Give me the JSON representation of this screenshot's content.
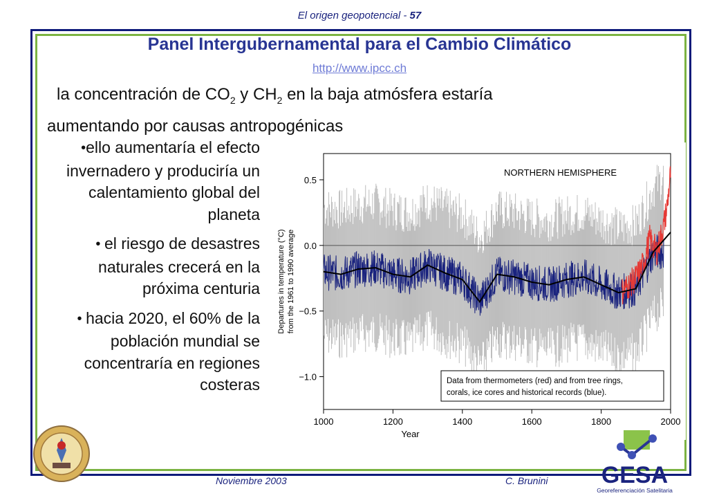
{
  "header": {
    "text": "El origen geopotencial - ",
    "page": "57"
  },
  "title": "Panel Intergubernamental para el Cambio Climático",
  "url": "http://www.ipcc.ch",
  "lead": {
    "part1": "la concentración de CO",
    "sub1": "2",
    "part2": " y CH",
    "sub2": "2",
    "part3": " en la baja atmósfera estaría",
    "line2": "aumentando por causas antropogénicas"
  },
  "bullets": [
    "ello aumentaría el efecto invernadero y produciría un calentamiento global del planeta",
    "el riesgo de desastres naturales crecerá en la próxima centuria",
    "hacia 2020, el 60% de la población mundial se concentraría en regiones costeras"
  ],
  "footer": {
    "date": "Noviembre 2003",
    "author": "C. Brunini"
  },
  "logo": {
    "name": "GESA",
    "tagline": "Georeferenciación Satelitaria"
  },
  "chart_data": {
    "type": "line",
    "title": "NORTHERN HEMISPHERE",
    "xlabel": "Year",
    "ylabel": "Departures in temperature (°C) from the 1961 to 1990 average",
    "xlim": [
      1000,
      2000
    ],
    "ylim": [
      -1.25,
      0.7
    ],
    "x_ticks": [
      "1000",
      "1200",
      "1400",
      "1600",
      "1800",
      "2000"
    ],
    "y_ticks": [
      "0.5",
      "0.0",
      "−0.5",
      "−1.0"
    ],
    "legend_text": "Data from thermometers (red) and from tree rings, corals, ice cores and historical records (blue).",
    "legend_placement": "bottom-right",
    "series": [
      {
        "color": "#1a237e",
        "x": [
          1000,
          1050,
          1100,
          1150,
          1200,
          1250,
          1300,
          1350,
          1400,
          1450,
          1500,
          1550,
          1600,
          1650,
          1700,
          1750,
          1800,
          1850,
          1900,
          1950
        ],
        "values": [
          -0.2,
          -0.22,
          -0.18,
          -0.17,
          -0.22,
          -0.24,
          -0.15,
          -0.21,
          -0.26,
          -0.43,
          -0.22,
          -0.24,
          -0.28,
          -0.3,
          -0.26,
          -0.24,
          -0.3,
          -0.36,
          -0.33,
          -0.05
        ]
      },
      {
        "color": "#e53935",
        "x": [
          1860,
          1880,
          1900,
          1920,
          1940,
          1960,
          1980,
          1990,
          2000
        ],
        "values": [
          -0.35,
          -0.3,
          -0.25,
          -0.15,
          0.05,
          -0.05,
          0.15,
          0.3,
          0.55
        ]
      }
    ],
    "smoothed": {
      "color": "#000000",
      "x": [
        1000,
        1050,
        1100,
        1150,
        1200,
        1250,
        1300,
        1350,
        1400,
        1450,
        1500,
        1550,
        1600,
        1650,
        1700,
        1750,
        1800,
        1850,
        1900,
        1950,
        2000
      ],
      "values": [
        -0.2,
        -0.22,
        -0.18,
        -0.17,
        -0.22,
        -0.24,
        -0.15,
        -0.21,
        -0.26,
        -0.43,
        -0.22,
        -0.24,
        -0.28,
        -0.3,
        -0.26,
        -0.24,
        -0.3,
        -0.36,
        -0.33,
        -0.05,
        0.1
      ]
    },
    "uncertainty_color": "#bdbdbd"
  }
}
